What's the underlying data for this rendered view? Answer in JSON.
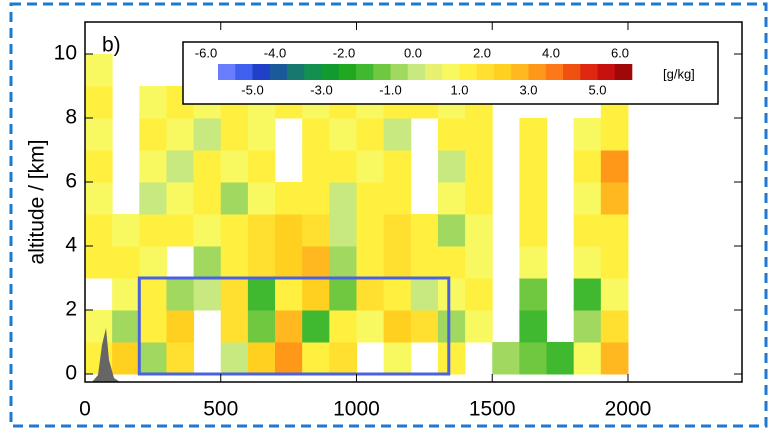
{
  "chart_data": {
    "type": "heatmap",
    "panel_label": "b)",
    "ylabel": "altitude / [km]",
    "xlim": [
      0,
      2420
    ],
    "ylim": [
      -0.25,
      11
    ],
    "xticks": [
      0,
      500,
      1000,
      1500,
      2000
    ],
    "yticks": [
      0,
      2,
      4,
      6,
      8,
      10
    ],
    "xbins": [
      0,
      100,
      200,
      300,
      400,
      500,
      600,
      700,
      800,
      900,
      1000,
      1100,
      1200,
      1300,
      1400,
      1500,
      1600,
      1700,
      1800,
      1900,
      2000,
      2100
    ],
    "ybins": [
      0,
      1,
      2,
      3,
      4,
      5,
      6,
      7,
      8,
      9,
      10
    ],
    "z": [
      [
        1,
        2,
        -1,
        1.5,
        null,
        -0.5,
        2,
        3,
        1,
        1.5,
        null,
        0.5,
        null,
        1,
        null,
        -1,
        -1.5,
        -2,
        0.5,
        2.5,
        null
      ],
      [
        0.5,
        -1,
        1,
        2,
        null,
        1.5,
        -1.5,
        2.5,
        -2,
        1,
        0.5,
        2,
        1.5,
        -1,
        0.5,
        null,
        -2,
        null,
        -1,
        1.5,
        null
      ],
      [
        null,
        0.5,
        1,
        -1,
        -0.5,
        1.5,
        -2,
        1,
        2,
        -1.5,
        1.5,
        1,
        -0.5,
        0.5,
        1,
        null,
        -1.5,
        null,
        -2,
        0.5,
        null
      ],
      [
        1,
        1,
        0.5,
        null,
        -1,
        1,
        1.5,
        2,
        2.5,
        -1,
        1,
        1.5,
        1,
        1,
        0.5,
        null,
        0.5,
        null,
        0.5,
        1,
        null
      ],
      [
        1,
        0.5,
        1,
        1,
        0.5,
        1,
        1.5,
        2,
        1.5,
        -0.5,
        1,
        1.5,
        1,
        -1,
        0.5,
        null,
        1,
        null,
        1,
        1,
        null
      ],
      [
        0.5,
        null,
        -0.5,
        0.5,
        1,
        -1,
        0.5,
        1,
        1,
        -0.5,
        1,
        1,
        null,
        0.5,
        1,
        null,
        1,
        null,
        0.5,
        2.5,
        null
      ],
      [
        1,
        null,
        0.5,
        -0.5,
        1,
        0.5,
        1,
        null,
        1,
        1,
        0.5,
        1,
        null,
        -0.5,
        1,
        null,
        1,
        null,
        1,
        3,
        null
      ],
      [
        0.5,
        null,
        1,
        0.5,
        -0.5,
        1,
        0.5,
        null,
        1,
        0.5,
        1,
        -0.5,
        null,
        1,
        1,
        null,
        1,
        null,
        0.5,
        1,
        null
      ],
      [
        1,
        null,
        0.5,
        1,
        0.5,
        1,
        0.5,
        1,
        0.5,
        1,
        0.5,
        1,
        1,
        0.5,
        1,
        null,
        null,
        null,
        null,
        1,
        null
      ],
      [
        0.5,
        null,
        null,
        null,
        null,
        null,
        null,
        null,
        null,
        null,
        null,
        null,
        null,
        null,
        null,
        null,
        null,
        null,
        null,
        null,
        null
      ]
    ],
    "box": {
      "x": [
        200,
        1340
      ],
      "y": [
        0,
        3
      ],
      "color": "#4a62e0"
    },
    "colorbar": {
      "unit": "[g/kg]",
      "lim": [
        -6,
        6
      ],
      "step": 0.5,
      "colors": [
        "#6a7dff",
        "#4060f0",
        "#2040c8",
        "#1a5a9a",
        "#16786e",
        "#129050",
        "#109a30",
        "#20a820",
        "#40b830",
        "#70c840",
        "#a0d860",
        "#c8e880",
        "#e8f070",
        "#f8f860",
        "#fff040",
        "#ffe030",
        "#ffd020",
        "#ffb820",
        "#ff9818",
        "#ff7818",
        "#f05010",
        "#e02810",
        "#c81010",
        "#a00808"
      ],
      "top_ticks": [
        {
          "value": -6,
          "label": "-6.0"
        },
        {
          "value": -4,
          "label": "-4.0"
        },
        {
          "value": -2,
          "label": "-2.0"
        },
        {
          "value": 0,
          "label": "0.0"
        },
        {
          "value": 2,
          "label": "2.0"
        },
        {
          "value": 4,
          "label": "4.0"
        },
        {
          "value": 6,
          "label": "6.0"
        }
      ],
      "bottom_ticks": [
        {
          "value": -5,
          "label": "-5.0"
        },
        {
          "value": -3,
          "label": "-3.0"
        },
        {
          "value": -1,
          "label": "-1.0"
        },
        {
          "value": 1,
          "label": "1.0"
        },
        {
          "value": 3,
          "label": "3.0"
        },
        {
          "value": 5,
          "label": "5.0"
        }
      ]
    }
  }
}
